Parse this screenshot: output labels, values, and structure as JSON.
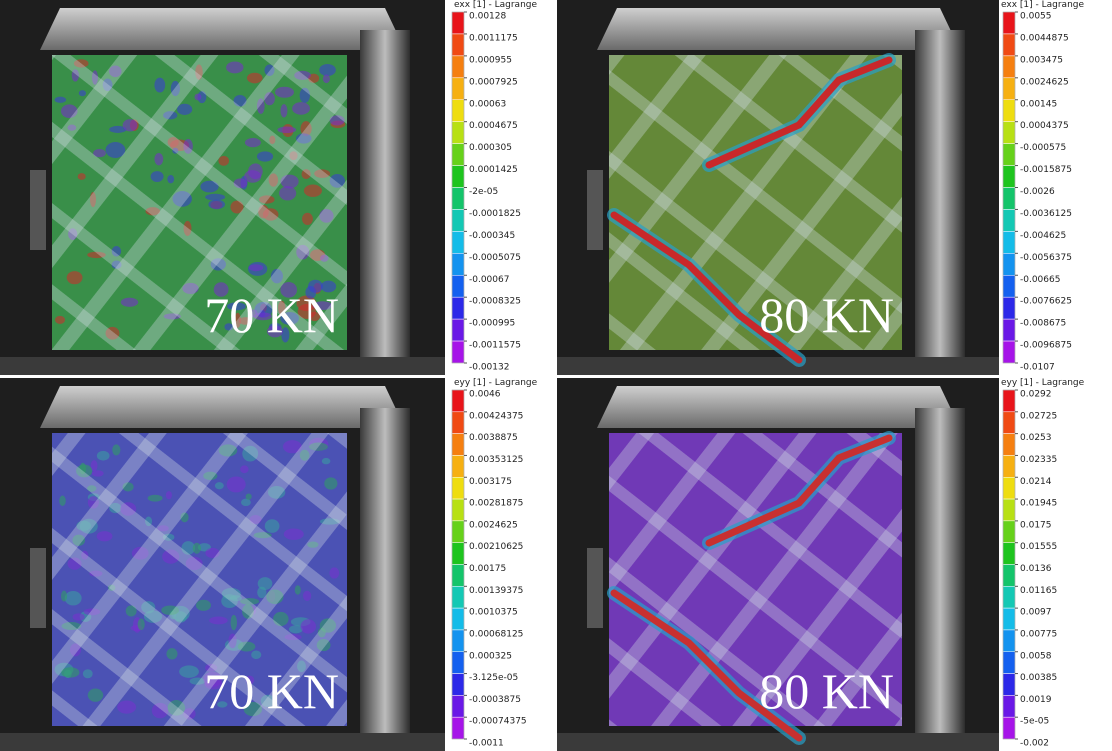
{
  "panels": [
    {
      "load": "70 KN",
      "colorbar": {
        "title": "exx [1] - Lagrange",
        "ticks": [
          "0.00128",
          "0.0011175",
          "0.000955",
          "0.0007925",
          "0.00063",
          "0.0004675",
          "0.000305",
          "0.0001425",
          "-2e-05",
          "-0.0001825",
          "-0.000345",
          "-0.0005075",
          "-0.00067",
          "-0.0008325",
          "-0.000995",
          "-0.0011575",
          "-0.00132"
        ]
      }
    },
    {
      "load": "80 KN",
      "colorbar": {
        "title": "exx [1] - Lagrange",
        "ticks": [
          "0.0055",
          "0.0044875",
          "0.003475",
          "0.0024625",
          "0.00145",
          "0.0004375",
          "-0.000575",
          "-0.0015875",
          "-0.0026",
          "-0.0036125",
          "-0.004625",
          "-0.0056375",
          "-0.00665",
          "-0.0076625",
          "-0.008675",
          "-0.0096875",
          "-0.0107"
        ]
      }
    },
    {
      "load": "70 KN",
      "colorbar": {
        "title": "eyy [1] - Lagrange",
        "ticks": [
          "0.0046",
          "0.00424375",
          "0.0038875",
          "0.00353125",
          "0.003175",
          "0.00281875",
          "0.0024625",
          "0.00210625",
          "0.00175",
          "0.00139375",
          "0.0010375",
          "0.00068125",
          "0.000325",
          "-3.125e-05",
          "-0.0003875",
          "-0.00074375",
          "-0.0011"
        ]
      }
    },
    {
      "load": "80 KN",
      "colorbar": {
        "title": "eyy [1] - Lagrange",
        "ticks": [
          "0.0292",
          "0.02725",
          "0.0253",
          "0.02335",
          "0.0214",
          "0.01945",
          "0.0175",
          "0.01555",
          "0.0136",
          "0.01165",
          "0.0097",
          "0.00775",
          "0.0058",
          "0.00385",
          "0.0019",
          "-5e-05",
          "-0.002"
        ]
      }
    }
  ]
}
